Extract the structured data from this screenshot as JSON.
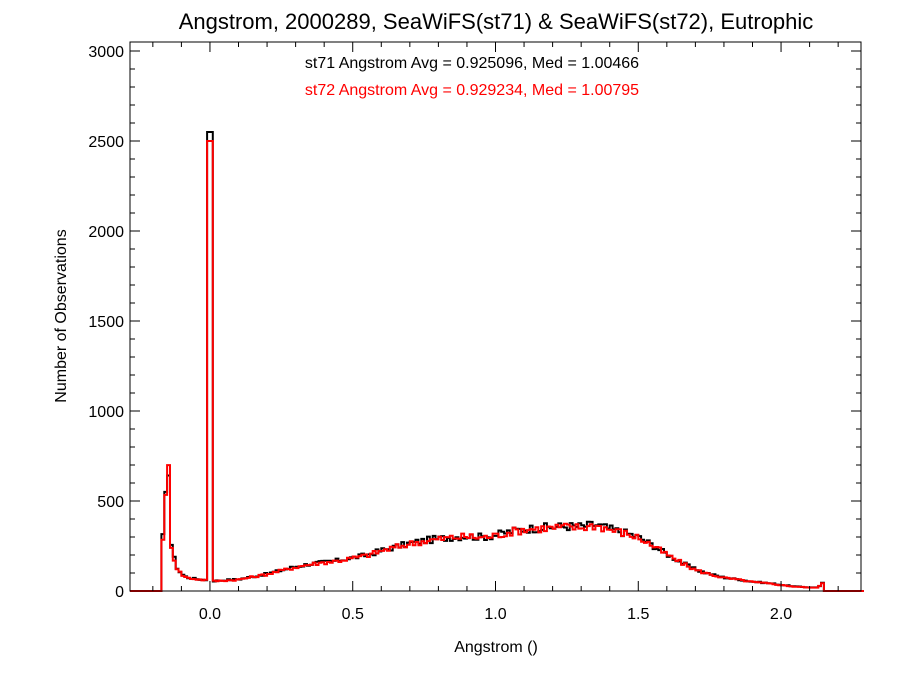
{
  "chart_data": {
    "type": "histogram",
    "title": "Angstrom, 2000289, SeaWiFS(st71) & SeaWiFS(st72), Eutrophic",
    "xlabel": "Angstrom ()",
    "ylabel": "Number of Observations",
    "xlim": [
      -0.28,
      2.28
    ],
    "ylim": [
      0,
      3050
    ],
    "xticks": [
      0.0,
      0.5,
      1.0,
      1.5,
      2.0
    ],
    "xtick_labels": [
      "0.0",
      "0.5",
      "1.0",
      "1.5",
      "2.0"
    ],
    "yticks": [
      0,
      500,
      1000,
      1500,
      2000,
      2500,
      3000
    ],
    "ytick_labels": [
      "0",
      "500",
      "1000",
      "1500",
      "2000",
      "2500",
      "3000"
    ],
    "bin_width": 0.01,
    "annotations": [
      {
        "text": "st71 Angstrom Avg = 0.925096, Med = 1.00466",
        "color": "#000000"
      },
      {
        "text": "st72 Angstrom Avg = 0.929234, Med = 1.00795",
        "color": "#ff0000"
      }
    ],
    "series": [
      {
        "name": "st71",
        "color": "#000000",
        "points": [
          [
            -0.28,
            0
          ],
          [
            -0.17,
            0
          ],
          [
            -0.165,
            300
          ],
          [
            -0.155,
            520
          ],
          [
            -0.148,
            845
          ],
          [
            -0.142,
            520
          ],
          [
            -0.135,
            260
          ],
          [
            -0.125,
            180
          ],
          [
            -0.115,
            130
          ],
          [
            -0.1,
            95
          ],
          [
            -0.08,
            75
          ],
          [
            -0.06,
            70
          ],
          [
            -0.04,
            65
          ],
          [
            -0.02,
            62
          ],
          [
            -0.005,
            60
          ],
          [
            0.0,
            2550
          ],
          [
            0.005,
            55
          ],
          [
            0.05,
            60
          ],
          [
            0.1,
            65
          ],
          [
            0.15,
            80
          ],
          [
            0.2,
            95
          ],
          [
            0.25,
            115
          ],
          [
            0.3,
            135
          ],
          [
            0.35,
            150
          ],
          [
            0.4,
            160
          ],
          [
            0.45,
            170
          ],
          [
            0.5,
            185
          ],
          [
            0.55,
            200
          ],
          [
            0.6,
            225
          ],
          [
            0.65,
            245
          ],
          [
            0.7,
            265
          ],
          [
            0.75,
            280
          ],
          [
            0.8,
            290
          ],
          [
            0.85,
            300
          ],
          [
            0.9,
            305
          ],
          [
            0.95,
            300
          ],
          [
            1.0,
            310
          ],
          [
            1.05,
            330
          ],
          [
            1.1,
            345
          ],
          [
            1.15,
            350
          ],
          [
            1.2,
            355
          ],
          [
            1.25,
            360
          ],
          [
            1.3,
            358
          ],
          [
            1.35,
            370
          ],
          [
            1.4,
            345
          ],
          [
            1.45,
            325
          ],
          [
            1.5,
            300
          ],
          [
            1.55,
            255
          ],
          [
            1.6,
            205
          ],
          [
            1.65,
            160
          ],
          [
            1.7,
            120
          ],
          [
            1.75,
            95
          ],
          [
            1.8,
            75
          ],
          [
            1.85,
            65
          ],
          [
            1.9,
            52
          ],
          [
            1.95,
            45
          ],
          [
            2.0,
            35
          ],
          [
            2.05,
            25
          ],
          [
            2.1,
            20
          ],
          [
            2.13,
            20
          ],
          [
            2.145,
            45
          ],
          [
            2.155,
            0
          ],
          [
            2.28,
            0
          ]
        ]
      },
      {
        "name": "st72",
        "color": "#ff0000",
        "points": [
          [
            -0.28,
            0
          ],
          [
            -0.17,
            0
          ],
          [
            -0.165,
            300
          ],
          [
            -0.155,
            510
          ],
          [
            -0.148,
            840
          ],
          [
            -0.142,
            515
          ],
          [
            -0.135,
            255
          ],
          [
            -0.125,
            175
          ],
          [
            -0.115,
            128
          ],
          [
            -0.1,
            92
          ],
          [
            -0.08,
            73
          ],
          [
            -0.06,
            68
          ],
          [
            -0.04,
            64
          ],
          [
            -0.02,
            61
          ],
          [
            -0.005,
            59
          ],
          [
            0.0,
            2500
          ],
          [
            0.005,
            54
          ],
          [
            0.05,
            58
          ],
          [
            0.1,
            63
          ],
          [
            0.15,
            78
          ],
          [
            0.2,
            93
          ],
          [
            0.25,
            113
          ],
          [
            0.3,
            132
          ],
          [
            0.35,
            148
          ],
          [
            0.4,
            158
          ],
          [
            0.45,
            168
          ],
          [
            0.5,
            182
          ],
          [
            0.55,
            198
          ],
          [
            0.6,
            222
          ],
          [
            0.65,
            242
          ],
          [
            0.7,
            262
          ],
          [
            0.75,
            277
          ],
          [
            0.8,
            287
          ],
          [
            0.85,
            297
          ],
          [
            0.9,
            302
          ],
          [
            0.95,
            297
          ],
          [
            1.0,
            307
          ],
          [
            1.05,
            327
          ],
          [
            1.1,
            342
          ],
          [
            1.15,
            347
          ],
          [
            1.2,
            350
          ],
          [
            1.25,
            355
          ],
          [
            1.3,
            352
          ],
          [
            1.35,
            365
          ],
          [
            1.4,
            342
          ],
          [
            1.45,
            322
          ],
          [
            1.5,
            297
          ],
          [
            1.55,
            252
          ],
          [
            1.6,
            202
          ],
          [
            1.65,
            157
          ],
          [
            1.7,
            117
          ],
          [
            1.75,
            93
          ],
          [
            1.8,
            73
          ],
          [
            1.85,
            63
          ],
          [
            1.9,
            50
          ],
          [
            1.95,
            43
          ],
          [
            2.0,
            33
          ],
          [
            2.05,
            24
          ],
          [
            2.1,
            19
          ],
          [
            2.13,
            19
          ],
          [
            2.145,
            43
          ],
          [
            2.155,
            0
          ],
          [
            2.28,
            0
          ]
        ]
      }
    ]
  }
}
